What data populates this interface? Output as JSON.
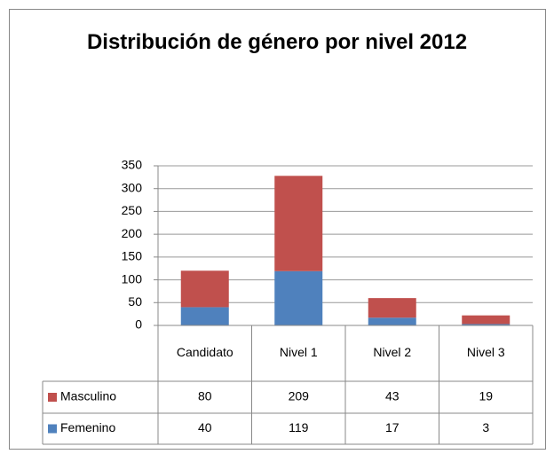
{
  "chart_data": {
    "type": "stacked_bar",
    "title": "Distribución de género por nivel 2012",
    "categories": [
      "Candidato",
      "Nivel 1",
      "Nivel 2",
      "Nivel 3"
    ],
    "series": [
      {
        "name": "Masculino",
        "color": "#c0504d",
        "values": [
          80,
          209,
          43,
          19
        ]
      },
      {
        "name": "Femenino",
        "color": "#4f81bd",
        "values": [
          40,
          119,
          17,
          3
        ]
      }
    ],
    "ylim": [
      0,
      350
    ],
    "yticks": [
      0,
      50,
      100,
      150,
      200,
      250,
      300,
      350
    ],
    "grid": true,
    "data_table": true
  }
}
